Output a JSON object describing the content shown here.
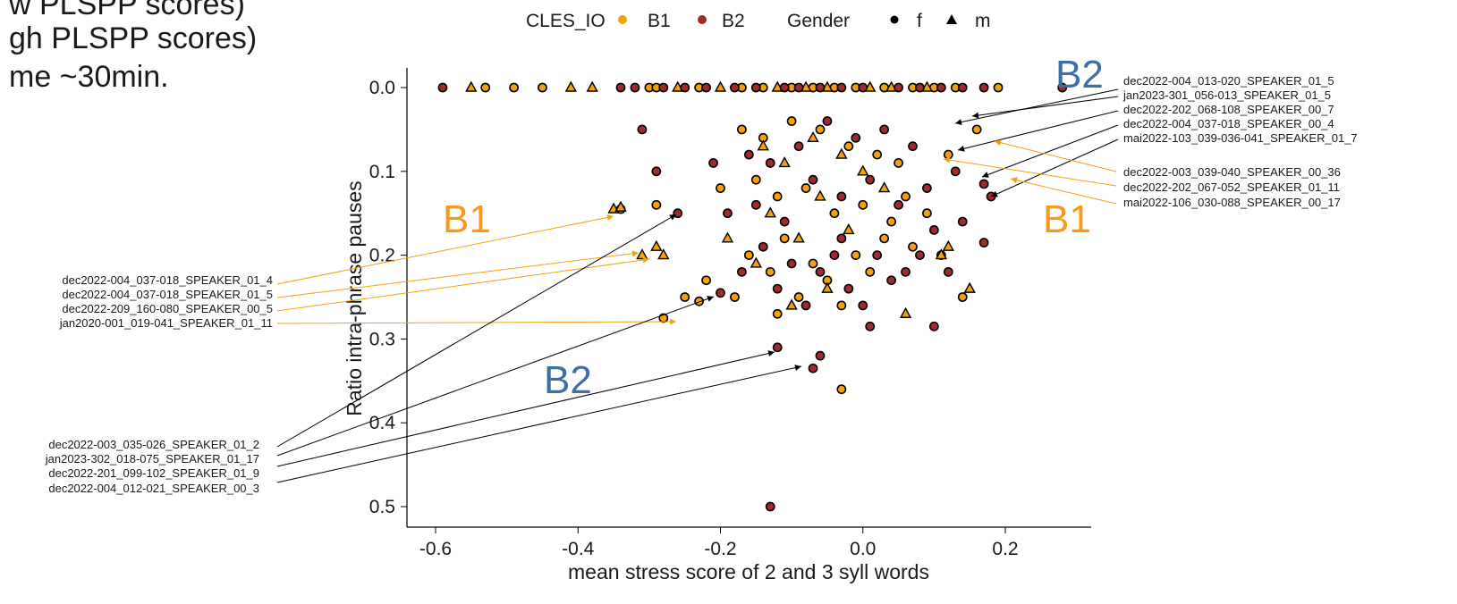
{
  "fragments": [
    "w PLSPP scores)",
    "gh PLSPP scores)",
    "me ~30min."
  ],
  "colors": {
    "B1": "#f5a10a",
    "B2": "#9f2b2b",
    "B1_label": "#f59b1c",
    "B2_label": "#3e6ea8",
    "arrow_black": "#000000",
    "arrow_orange": "#f5a10a"
  },
  "chart_data": {
    "type": "scatter",
    "title": "",
    "xlabel": "mean stress score of 2 and 3 syll words",
    "ylabel": "Ratio intra-phrase pauses",
    "xlim": [
      -0.63,
      0.32
    ],
    "ylim": [
      0.52,
      -0.025
    ],
    "y_reversed": true,
    "grid": false,
    "x_ticks": [
      -0.6,
      -0.4,
      -0.2,
      0.0,
      0.2
    ],
    "x_tick_labels": [
      "-0.6",
      "-0.4",
      "-0.2",
      "0.0",
      "0.2"
    ],
    "y_ticks": [
      0.0,
      0.1,
      0.2,
      0.3,
      0.4,
      0.5
    ],
    "y_tick_labels": [
      "0.0",
      "0.1",
      "0.2",
      "0.3",
      "0.4",
      "0.5"
    ],
    "legend": {
      "placement": "top",
      "color_title": "CLES_IO",
      "color_items": [
        {
          "label": "B1",
          "color": "#f5a10a"
        },
        {
          "label": "B2",
          "color": "#9f2b2b"
        }
      ],
      "shape_title": "Gender",
      "shape_items": [
        {
          "label": "f",
          "shape": "circle"
        },
        {
          "label": "m",
          "shape": "triangle"
        }
      ]
    },
    "series": [
      {
        "name": "B1",
        "f": [
          [
            -0.53,
            0.0
          ],
          [
            -0.49,
            0.0
          ],
          [
            -0.45,
            0.0
          ],
          [
            -0.3,
            0.0
          ],
          [
            -0.29,
            0.0
          ],
          [
            -0.23,
            0.0
          ],
          [
            -0.17,
            0.0
          ],
          [
            -0.14,
            0.0
          ],
          [
            -0.1,
            0.0
          ],
          [
            -0.07,
            0.0
          ],
          [
            -0.04,
            0.0
          ],
          [
            -0.01,
            0.0
          ],
          [
            0.03,
            0.0
          ],
          [
            0.07,
            0.0
          ],
          [
            0.1,
            0.0
          ],
          [
            0.13,
            0.0
          ],
          [
            0.19,
            0.0
          ],
          [
            -0.29,
            0.14
          ],
          [
            -0.34,
            0.145
          ],
          [
            -0.25,
            0.25
          ],
          [
            -0.23,
            0.255
          ],
          [
            -0.28,
            0.275
          ],
          [
            -0.12,
            0.27
          ],
          [
            -0.03,
            0.36
          ],
          [
            0.14,
            0.25
          ],
          [
            -0.17,
            0.05
          ],
          [
            -0.14,
            0.06
          ],
          [
            -0.1,
            0.04
          ],
          [
            -0.06,
            0.05
          ],
          [
            -0.02,
            0.07
          ],
          [
            0.02,
            0.08
          ],
          [
            0.05,
            0.09
          ],
          [
            -0.15,
            0.11
          ],
          [
            -0.12,
            0.13
          ],
          [
            -0.08,
            0.12
          ],
          [
            -0.04,
            0.15
          ],
          [
            0.0,
            0.14
          ],
          [
            0.04,
            0.16
          ],
          [
            -0.16,
            0.2
          ],
          [
            -0.13,
            0.22
          ],
          [
            -0.09,
            0.25
          ],
          [
            -0.05,
            0.23
          ],
          [
            -0.01,
            0.2
          ],
          [
            0.03,
            0.18
          ],
          [
            0.06,
            0.13
          ],
          [
            0.09,
            0.15
          ],
          [
            0.12,
            0.08
          ],
          [
            0.16,
            0.05
          ],
          [
            -0.2,
            0.12
          ],
          [
            -0.22,
            0.23
          ],
          [
            -0.18,
            0.25
          ],
          [
            -0.11,
            0.18
          ],
          [
            -0.07,
            0.21
          ],
          [
            -0.03,
            0.26
          ],
          [
            0.01,
            0.22
          ],
          [
            0.07,
            0.19
          ],
          [
            0.11,
            0.2
          ]
        ],
        "m": [
          [
            -0.55,
            0.0
          ],
          [
            -0.41,
            0.0
          ],
          [
            -0.38,
            0.0
          ],
          [
            -0.26,
            0.0
          ],
          [
            -0.2,
            0.0
          ],
          [
            -0.12,
            0.0
          ],
          [
            -0.08,
            0.0
          ],
          [
            -0.05,
            0.0
          ],
          [
            0.01,
            0.0
          ],
          [
            0.04,
            0.0
          ],
          [
            0.09,
            0.0
          ],
          [
            -0.35,
            0.145
          ],
          [
            -0.34,
            0.143
          ],
          [
            -0.31,
            0.2
          ],
          [
            -0.29,
            0.19
          ],
          [
            -0.28,
            0.2
          ],
          [
            -0.14,
            0.07
          ],
          [
            -0.11,
            0.09
          ],
          [
            -0.07,
            0.06
          ],
          [
            -0.03,
            0.08
          ],
          [
            0.0,
            0.1
          ],
          [
            -0.13,
            0.15
          ],
          [
            -0.09,
            0.18
          ],
          [
            -0.06,
            0.13
          ],
          [
            -0.02,
            0.17
          ],
          [
            0.03,
            0.12
          ],
          [
            0.11,
            0.2
          ],
          [
            0.15,
            0.24
          ],
          [
            -0.15,
            0.21
          ],
          [
            -0.1,
            0.26
          ],
          [
            0.06,
            0.27
          ],
          [
            -0.19,
            0.18
          ],
          [
            -0.05,
            0.24
          ],
          [
            0.12,
            0.19
          ]
        ]
      },
      {
        "name": "B2",
        "f": [
          [
            -0.59,
            0.0
          ],
          [
            -0.34,
            0.0
          ],
          [
            -0.32,
            0.0
          ],
          [
            -0.28,
            0.0
          ],
          [
            -0.25,
            0.0
          ],
          [
            -0.22,
            0.0
          ],
          [
            -0.18,
            0.0
          ],
          [
            -0.15,
            0.0
          ],
          [
            -0.11,
            0.0
          ],
          [
            -0.09,
            0.0
          ],
          [
            -0.06,
            0.0
          ],
          [
            -0.03,
            0.0
          ],
          [
            0.0,
            0.0
          ],
          [
            0.05,
            0.0
          ],
          [
            0.08,
            0.0
          ],
          [
            0.11,
            0.0
          ],
          [
            0.14,
            0.0
          ],
          [
            0.17,
            0.0
          ],
          [
            0.28,
            0.0
          ],
          [
            -0.31,
            0.05
          ],
          [
            -0.29,
            0.1
          ],
          [
            -0.26,
            0.15
          ],
          [
            -0.13,
            0.5
          ],
          [
            -0.12,
            0.31
          ],
          [
            -0.07,
            0.335
          ],
          [
            -0.06,
            0.32
          ],
          [
            0.01,
            0.285
          ],
          [
            0.1,
            0.285
          ],
          [
            0.17,
            0.115
          ],
          [
            0.18,
            0.13
          ],
          [
            0.17,
            0.185
          ],
          [
            -0.2,
            0.245
          ],
          [
            -0.16,
            0.08
          ],
          [
            -0.13,
            0.09
          ],
          [
            -0.09,
            0.07
          ],
          [
            -0.05,
            0.04
          ],
          [
            -0.01,
            0.06
          ],
          [
            0.03,
            0.05
          ],
          [
            0.07,
            0.07
          ],
          [
            -0.15,
            0.14
          ],
          [
            -0.11,
            0.16
          ],
          [
            -0.07,
            0.11
          ],
          [
            -0.03,
            0.13
          ],
          [
            0.01,
            0.11
          ],
          [
            0.05,
            0.14
          ],
          [
            0.09,
            0.12
          ],
          [
            0.13,
            0.1
          ],
          [
            -0.14,
            0.19
          ],
          [
            -0.1,
            0.21
          ],
          [
            -0.06,
            0.22
          ],
          [
            -0.02,
            0.24
          ],
          [
            0.02,
            0.2
          ],
          [
            0.06,
            0.22
          ],
          [
            0.1,
            0.17
          ],
          [
            0.14,
            0.16
          ],
          [
            -0.12,
            0.24
          ],
          [
            -0.08,
            0.26
          ],
          [
            -0.04,
            0.2
          ],
          [
            0.0,
            0.26
          ],
          [
            0.04,
            0.23
          ],
          [
            -0.21,
            0.09
          ],
          [
            -0.19,
            0.15
          ],
          [
            -0.17,
            0.22
          ],
          [
            -0.03,
            0.18
          ],
          [
            0.08,
            0.2
          ],
          [
            0.12,
            0.22
          ]
        ],
        "m": []
      }
    ],
    "annotations": {
      "group_labels": [
        "B2",
        "B1",
        "B1",
        "B2"
      ],
      "left_labels": [
        "dec2022-004_037-018_SPEAKER_01_4",
        "dec2022-004_037-018_SPEAKER_01_5",
        "dec2022-209_160-080_SPEAKER_00_5",
        "jan2020-001_019-041_SPEAKER_01_11",
        "dec2022-003_035-026_SPEAKER_01_2",
        "jan2023-302_018-075_SPEAKER_01_17",
        "dec2022-201_099-102_SPEAKER_01_9",
        "dec2022-004_012-021_SPEAKER_00_3"
      ],
      "right_labels": [
        "dec2022-004_013-020_SPEAKER_01_5",
        "jan2023-301_056-013_SPEAKER_01_5",
        "dec2022-202_068-108_SPEAKER_00_7",
        "dec2022-004_037-018_SPEAKER_00_4",
        "mai2022-103_039-036-041_SPEAKER_01_7",
        "dec2022-003_039-040_SPEAKER_00_36",
        "dec2022-202_067-052_SPEAKER_01_11",
        "mai2022-106_030-088_SPEAKER_00_17"
      ]
    }
  }
}
